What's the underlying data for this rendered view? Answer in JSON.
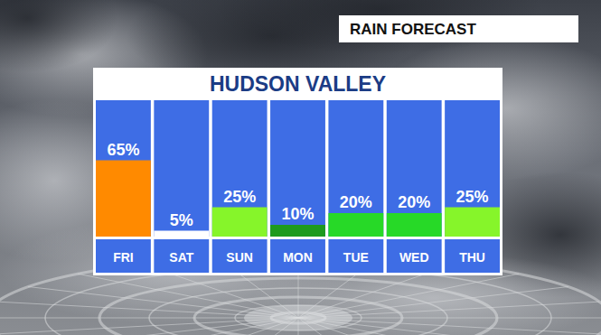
{
  "chart_data": {
    "type": "bar",
    "title": "HUDSON VALLEY",
    "annotations": [
      "RAIN FORECAST"
    ],
    "categories": [
      "FRI",
      "SAT",
      "SUN",
      "MON",
      "TUE",
      "WED",
      "THU"
    ],
    "values": [
      65,
      5,
      25,
      10,
      20,
      20,
      25
    ],
    "value_labels": [
      "65%",
      "5%",
      "25%",
      "10%",
      "20%",
      "20%",
      "25%"
    ],
    "colors": [
      "#ff8a00",
      "#ffffff",
      "#86f52a",
      "#1e9a1e",
      "#27d927",
      "#27d927",
      "#86f52a"
    ],
    "ylim": [
      0,
      100
    ],
    "grid": false,
    "data_labels": true,
    "tick_labels": "x"
  }
}
